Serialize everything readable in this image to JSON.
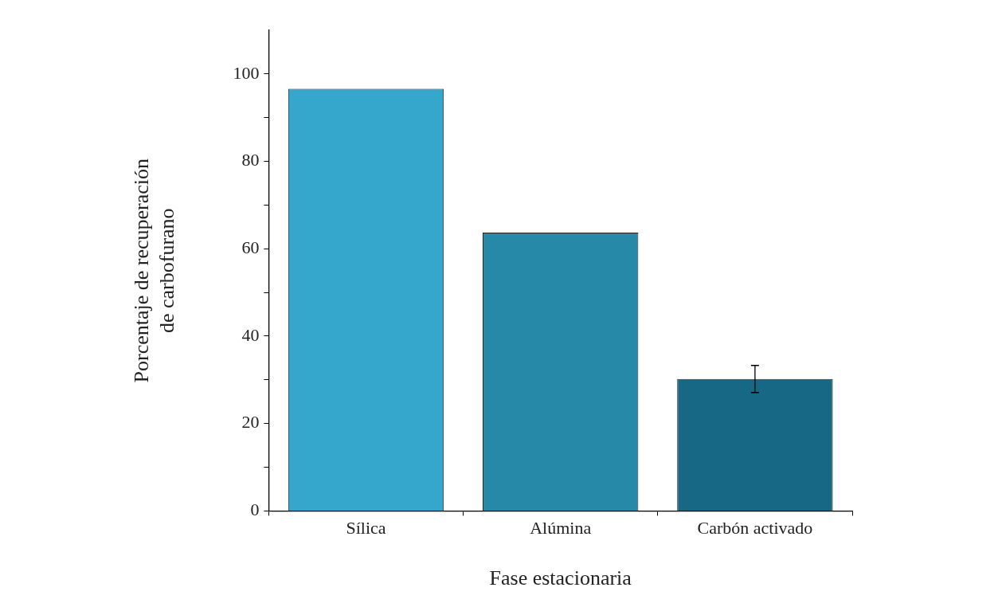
{
  "chart_data": {
    "type": "bar",
    "xlabel": "Fase estacionaria",
    "ylabel": "Porcentaje de recuperación\nde carbofurano",
    "categories": [
      "Sílica",
      "Alúmina",
      "Carbón activado"
    ],
    "values": [
      96.6,
      63.7,
      30.2
    ],
    "colors": [
      "#36a7cc",
      "#2789a8",
      "#176884"
    ],
    "errors": [
      null,
      null,
      3.1
    ],
    "ylim": [
      0,
      110
    ],
    "yticks": [
      0,
      {
        "value": 10,
        "label": null
      },
      20,
      {
        "value": 30,
        "label": null
      },
      40,
      {
        "value": 50,
        "label": null
      },
      60,
      {
        "value": 70,
        "label": null
      },
      80,
      {
        "value": 90,
        "label": null
      },
      100
    ],
    "grid": false,
    "legend": false
  }
}
